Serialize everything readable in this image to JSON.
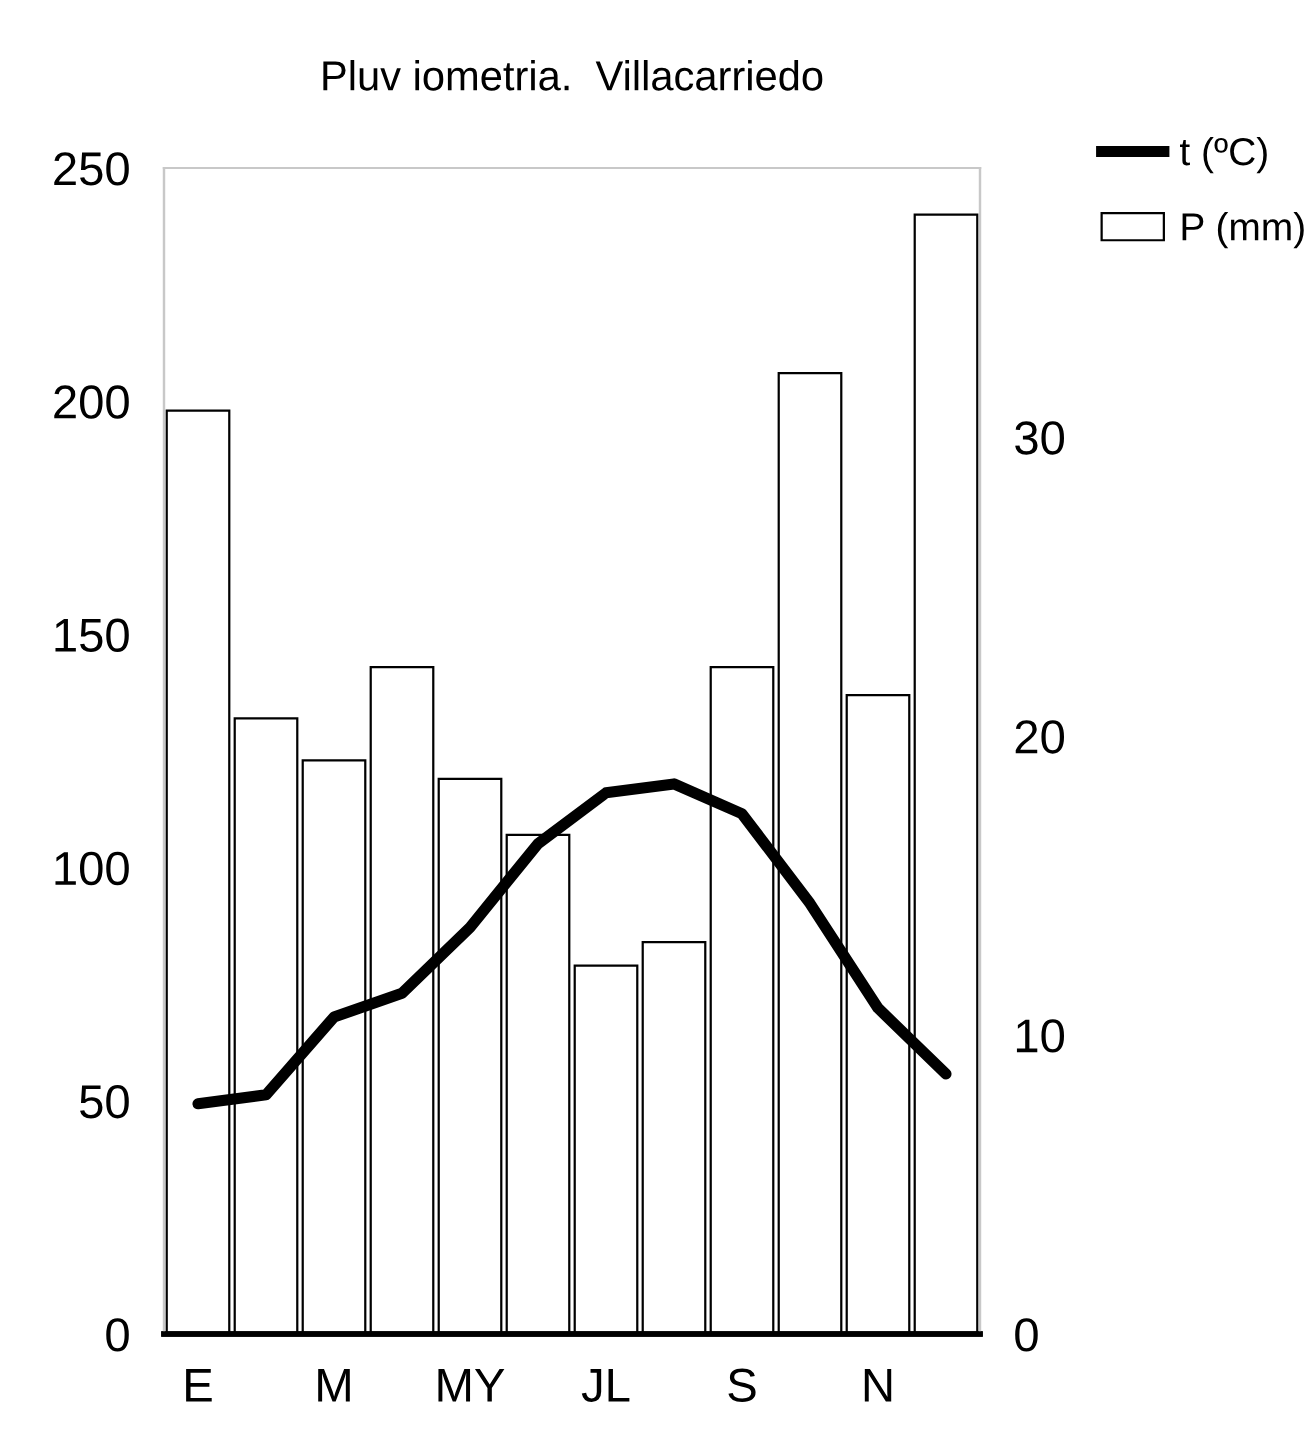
{
  "chart_data": {
    "type": "bar",
    "title": "Pluv iometria.  Villacarriedo",
    "categories": [
      "E",
      null,
      "M",
      null,
      "MY",
      null,
      "JL",
      null,
      "S",
      null,
      "N",
      null
    ],
    "series": [
      {
        "name": "P (mm)",
        "color": "#ffffff",
        "values": [
          198,
          132,
          123,
          143,
          119,
          107,
          79,
          84,
          143,
          206,
          137,
          240
        ]
      },
      {
        "name": "t (ºC)",
        "type": "line",
        "axis": "y2",
        "color": "#000000",
        "values": [
          7.7,
          8.0,
          10.6,
          11.4,
          13.6,
          16.4,
          18.1,
          18.4,
          17.4,
          14.4,
          10.9,
          8.7
        ]
      }
    ],
    "ylim": [
      0,
      250
    ],
    "yticks": [
      0,
      50,
      100,
      150,
      200,
      250
    ],
    "y2lim": [
      0,
      39
    ],
    "y2ticks": [
      0,
      10,
      20,
      30
    ],
    "grid": false,
    "legend": "top right",
    "marker": "none",
    "line_style": "solid"
  }
}
